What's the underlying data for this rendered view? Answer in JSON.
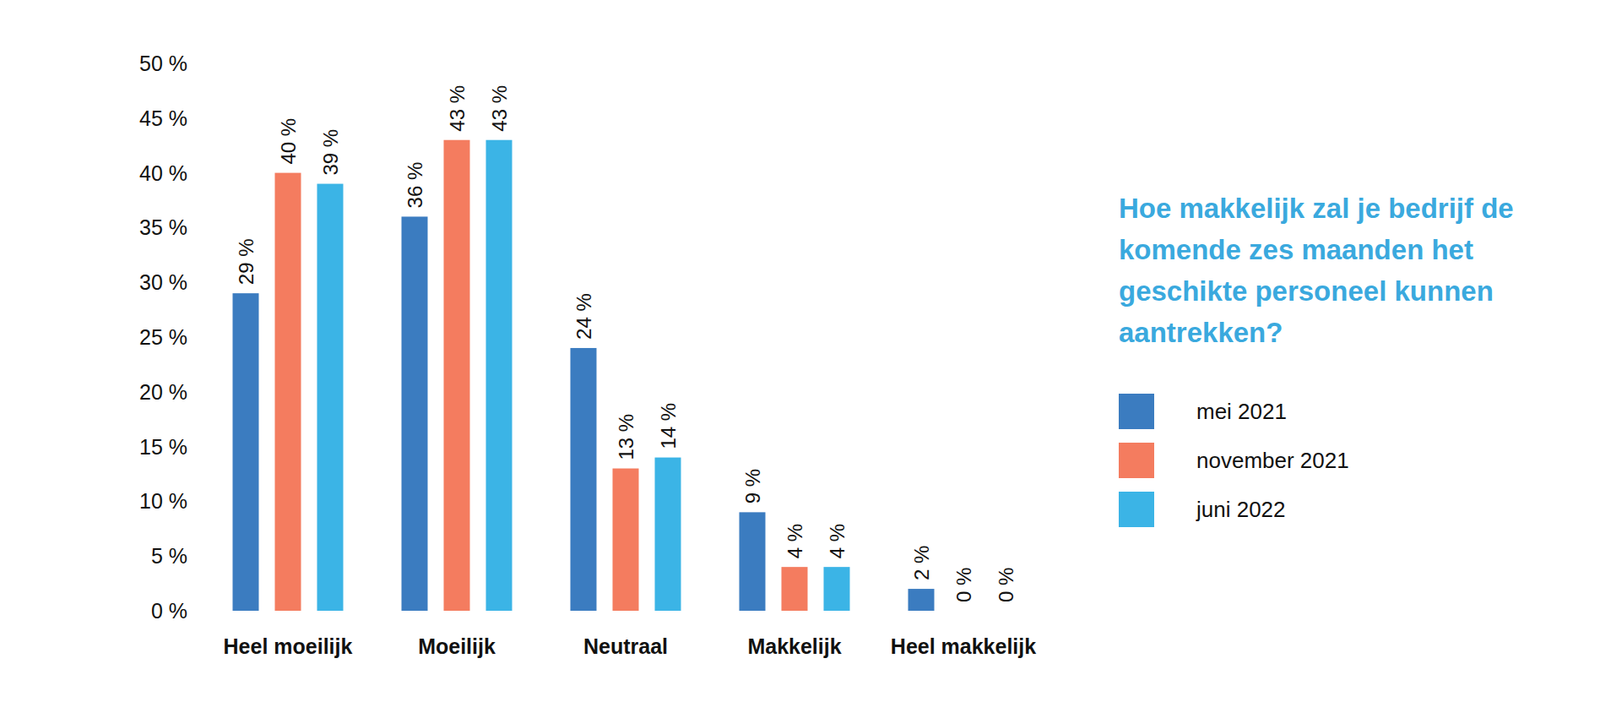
{
  "chart_data": {
    "type": "bar",
    "title": "Hoe makkelijk zal je bedrijf de komende zes maanden het geschikte personeel kunnen aantrekken?",
    "categories": [
      "Heel moeilijk",
      "Moeilijk",
      "Neutraal",
      "Makkelijk",
      "Heel makkelijk"
    ],
    "series": [
      {
        "name": "mei 2021",
        "color": "#3b7cc0",
        "values": [
          29,
          36,
          24,
          9,
          2
        ],
        "value_labels": [
          "29 %",
          "36 %",
          "24 %",
          "9 %",
          "2 %"
        ]
      },
      {
        "name": "november 2021",
        "color": "#f47c5f",
        "values": [
          40,
          43,
          13,
          4,
          0
        ],
        "value_labels": [
          "40 %",
          "43 %",
          "13 %",
          "4 %",
          "0 %"
        ]
      },
      {
        "name": "juni 2022",
        "color": "#3bb4e6",
        "values": [
          39,
          43,
          14,
          4,
          0
        ],
        "value_labels": [
          "39 %",
          "43 %",
          "14 %",
          "4 %",
          "0 %"
        ]
      }
    ],
    "ylim": [
      0,
      50
    ],
    "yticks": [
      {
        "value": 0,
        "label": "0 %"
      },
      {
        "value": 5,
        "label": "5 %"
      },
      {
        "value": 10,
        "label": "10 %"
      },
      {
        "value": 15,
        "label": "15 %"
      },
      {
        "value": 20,
        "label": "20 %"
      },
      {
        "value": 25,
        "label": "25 %"
      },
      {
        "value": 30,
        "label": "30 %"
      },
      {
        "value": 35,
        "label": "35 %"
      },
      {
        "value": 40,
        "label": "40 %"
      },
      {
        "value": 45,
        "label": "45 %"
      },
      {
        "value": 50,
        "label": "50 %"
      }
    ],
    "grid": false,
    "legend": "right",
    "data_labels": true
  }
}
